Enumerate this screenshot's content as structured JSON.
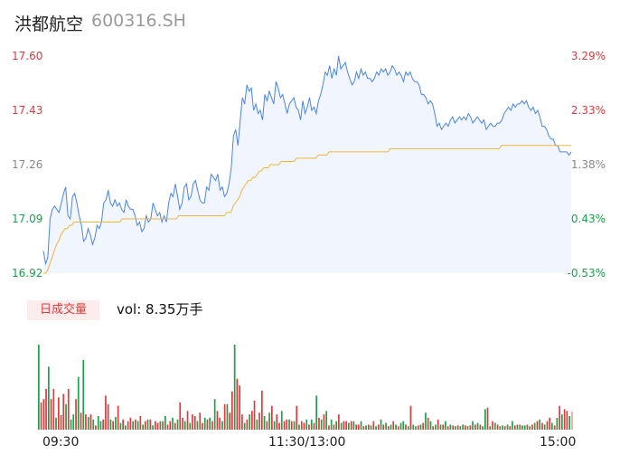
{
  "header": {
    "name": "洪都航空",
    "code": "600316.SH"
  },
  "colors": {
    "up": "#e4393c",
    "down": "#1aa34a",
    "neutral": "#888888",
    "price_line": "#4a84e8",
    "avg_line": "#f0b63c"
  },
  "volume": {
    "tab_label": "日成交量",
    "summary": "vol: 8.35万手"
  },
  "chart_data": [
    {
      "type": "line",
      "ylim": [
        16.92,
        17.6
      ],
      "y_ticks": [
        {
          "label": "17.60",
          "value": 17.6,
          "pct": "3.29%",
          "tone": "up"
        },
        {
          "label": "17.43",
          "value": 17.43,
          "pct": "2.33%",
          "tone": "up"
        },
        {
          "label": "17.26",
          "value": 17.26,
          "pct": "1.38%",
          "tone": "neutral"
        },
        {
          "label": "17.09",
          "value": 17.09,
          "pct": "0.43%",
          "tone": "down"
        },
        {
          "label": "16.92",
          "value": 16.92,
          "pct": "-0.53%",
          "tone": "down"
        }
      ],
      "x_ticks": [
        "09:30",
        "11:30/13:00",
        "15:00"
      ],
      "series": [
        {
          "role": "price",
          "values": [
            16.99,
            16.95,
            16.97,
            17.09,
            17.12,
            17.13,
            17.12,
            17.11,
            17.14,
            17.17,
            17.19,
            17.1,
            17.09,
            17.16,
            17.17,
            17.14,
            17.1,
            17.07,
            17.02,
            17.03,
            17.06,
            17.04,
            17.01,
            17.03,
            17.07,
            17.06,
            17.08,
            17.14,
            17.15,
            17.18,
            17.14,
            17.13,
            17.15,
            17.13,
            17.14,
            17.12,
            17.11,
            17.15,
            17.13,
            17.12,
            17.12,
            17.1,
            17.07,
            17.08,
            17.05,
            17.06,
            17.1,
            17.08,
            17.09,
            17.14,
            17.12,
            17.1,
            17.11,
            17.08,
            17.1,
            17.08,
            17.14,
            17.17,
            17.16,
            17.2,
            17.16,
            17.12,
            17.14,
            17.19,
            17.2,
            17.15,
            17.16,
            17.2,
            17.21,
            17.18,
            17.15,
            17.14,
            17.14,
            17.19,
            17.18,
            17.23,
            17.22,
            17.21,
            17.23,
            17.18,
            17.19,
            17.16,
            17.17,
            17.2,
            17.25,
            17.35,
            17.37,
            17.32,
            17.4,
            17.47,
            17.45,
            17.51,
            17.49,
            17.5,
            17.43,
            17.45,
            17.42,
            17.43,
            17.4,
            17.48,
            17.46,
            17.49,
            17.47,
            17.45,
            17.52,
            17.5,
            17.47,
            17.48,
            17.45,
            17.42,
            17.45,
            17.46,
            17.47,
            17.44,
            17.43,
            17.4,
            17.46,
            17.42,
            17.44,
            17.47,
            17.43,
            17.44,
            17.42,
            17.46,
            17.48,
            17.51,
            17.55,
            17.54,
            17.57,
            17.53,
            17.56,
            17.54,
            17.6,
            17.56,
            17.57,
            17.58,
            17.55,
            17.53,
            17.51,
            17.52,
            17.55,
            17.53,
            17.56,
            17.54,
            17.55,
            17.53,
            17.53,
            17.52,
            17.53,
            17.55,
            17.54,
            17.56,
            17.55,
            17.56,
            17.54,
            17.55,
            17.57,
            17.56,
            17.54,
            17.55,
            17.54,
            17.52,
            17.55,
            17.54,
            17.55,
            17.53,
            17.52,
            17.52,
            17.51,
            17.48,
            17.48,
            17.47,
            17.45,
            17.46,
            17.45,
            17.42,
            17.38,
            17.39,
            17.37,
            17.38,
            17.39,
            17.38,
            17.4,
            17.41,
            17.39,
            17.4,
            17.41,
            17.4,
            17.41,
            17.4,
            17.42,
            17.41,
            17.39,
            17.4,
            17.41,
            17.4,
            17.39,
            17.4,
            17.37,
            17.38,
            17.39,
            17.38,
            17.38,
            17.39,
            17.39,
            17.4,
            17.42,
            17.43,
            17.44,
            17.43,
            17.45,
            17.44,
            17.45,
            17.45,
            17.46,
            17.45,
            17.46,
            17.44,
            17.43,
            17.44,
            17.42,
            17.43,
            17.41,
            17.38,
            17.38,
            17.37,
            17.35,
            17.34,
            17.34,
            17.32,
            17.32,
            17.3,
            17.3,
            17.3,
            17.3,
            17.29,
            17.3
          ]
        },
        {
          "role": "average",
          "values": [
            16.92,
            16.92,
            16.93,
            16.95,
            16.97,
            16.99,
            17.01,
            17.02,
            17.04,
            17.05,
            17.06,
            17.06,
            17.07,
            17.07,
            17.08,
            17.08,
            17.08,
            17.08,
            17.08,
            17.08,
            17.08,
            17.08,
            17.08,
            17.08,
            17.08,
            17.08,
            17.08,
            17.08,
            17.08,
            17.08,
            17.08,
            17.08,
            17.08,
            17.08,
            17.08,
            17.08,
            17.09,
            17.09,
            17.09,
            17.09,
            17.09,
            17.09,
            17.09,
            17.09,
            17.09,
            17.09,
            17.09,
            17.09,
            17.09,
            17.09,
            17.09,
            17.09,
            17.09,
            17.09,
            17.09,
            17.09,
            17.09,
            17.09,
            17.09,
            17.09,
            17.09,
            17.09,
            17.1,
            17.1,
            17.1,
            17.1,
            17.1,
            17.1,
            17.1,
            17.1,
            17.1,
            17.1,
            17.1,
            17.1,
            17.1,
            17.1,
            17.1,
            17.1,
            17.1,
            17.1,
            17.1,
            17.1,
            17.1,
            17.1,
            17.11,
            17.11,
            17.11,
            17.13,
            17.14,
            17.15,
            17.16,
            17.18,
            17.19,
            17.2,
            17.21,
            17.21,
            17.22,
            17.22,
            17.23,
            17.24,
            17.24,
            17.25,
            17.25,
            17.25,
            17.26,
            17.26,
            17.26,
            17.26,
            17.26,
            17.27,
            17.27,
            17.27,
            17.27,
            17.27,
            17.27,
            17.27,
            17.28,
            17.28,
            17.28,
            17.28,
            17.28,
            17.28,
            17.28,
            17.28,
            17.28,
            17.28,
            17.29,
            17.29,
            17.29,
            17.29,
            17.29,
            17.3,
            17.3,
            17.3,
            17.3,
            17.3,
            17.3,
            17.3,
            17.3,
            17.3,
            17.3,
            17.3,
            17.3,
            17.3,
            17.3,
            17.3,
            17.3,
            17.3,
            17.3,
            17.3,
            17.3,
            17.3,
            17.3,
            17.3,
            17.3,
            17.3,
            17.3,
            17.3,
            17.3,
            17.31,
            17.31,
            17.31,
            17.31,
            17.31,
            17.31,
            17.31,
            17.31,
            17.31,
            17.31,
            17.31,
            17.31,
            17.31,
            17.31,
            17.31,
            17.31,
            17.31,
            17.31,
            17.31,
            17.31,
            17.31,
            17.31,
            17.31,
            17.31,
            17.31,
            17.31,
            17.31,
            17.31,
            17.31,
            17.31,
            17.31,
            17.31,
            17.31,
            17.31,
            17.31,
            17.31,
            17.31,
            17.31,
            17.31,
            17.31,
            17.31,
            17.31,
            17.31,
            17.31,
            17.31,
            17.31,
            17.31,
            17.31,
            17.31,
            17.31,
            17.31,
            17.32,
            17.32,
            17.32,
            17.32,
            17.32,
            17.32,
            17.32,
            17.32,
            17.32,
            17.32,
            17.32,
            17.32,
            17.32,
            17.32,
            17.32,
            17.32,
            17.32,
            17.32,
            17.32,
            17.32,
            17.32,
            17.32,
            17.32,
            17.32,
            17.32,
            17.32,
            17.32,
            17.32,
            17.32,
            17.32,
            17.32,
            17.32,
            17.32
          ]
        }
      ]
    },
    {
      "type": "bar",
      "x_ticks": [
        "09:30",
        "11:30/13:00",
        "15:00"
      ],
      "values": [
        100,
        32,
        36,
        48,
        74,
        36,
        48,
        14,
        38,
        17,
        42,
        30,
        48,
        12,
        18,
        36,
        62,
        20,
        82,
        18,
        15,
        18,
        12,
        5,
        16,
        10,
        12,
        40,
        30,
        12,
        10,
        15,
        28,
        8,
        12,
        5,
        10,
        14,
        10,
        12,
        10,
        16,
        6,
        10,
        12,
        12,
        5,
        10,
        8,
        10,
        10,
        16,
        6,
        10,
        14,
        8,
        12,
        32,
        14,
        10,
        22,
        8,
        18,
        16,
        10,
        20,
        8,
        14,
        12,
        14,
        10,
        36,
        22,
        14,
        10,
        30,
        30,
        20,
        45,
        100,
        60,
        52,
        18,
        8,
        12,
        18,
        22,
        34,
        12,
        20,
        46,
        16,
        10,
        20,
        28,
        10,
        18,
        8,
        22,
        10,
        12,
        12,
        10,
        10,
        28,
        6,
        10,
        8,
        12,
        6,
        12,
        8,
        40,
        14,
        12,
        18,
        22,
        5,
        12,
        6,
        10,
        18,
        8,
        10,
        10,
        8,
        10,
        10,
        6,
        6,
        10,
        4,
        5,
        6,
        5,
        10,
        4,
        6,
        12,
        6,
        8,
        4,
        6,
        10,
        6,
        4,
        8,
        10,
        6,
        4,
        28,
        6,
        4,
        5,
        6,
        8,
        20,
        14,
        10,
        4,
        6,
        12,
        6,
        6,
        10,
        4,
        6,
        5,
        4,
        5,
        4,
        6,
        5,
        4,
        5,
        10,
        6,
        8,
        6,
        4,
        24,
        26,
        4,
        10,
        8,
        6,
        4,
        5,
        4,
        6,
        4,
        10,
        5,
        6,
        6,
        5,
        5,
        6,
        4,
        6,
        8,
        10,
        12,
        8,
        6,
        10,
        14,
        8,
        5,
        14,
        28,
        18,
        24,
        22,
        16
      ],
      "colors": [
        "down",
        "up",
        "up",
        "up",
        "down",
        "up",
        "up",
        "down",
        "up",
        "up",
        "up",
        "down",
        "up",
        "down",
        "down",
        "up",
        "down",
        "up",
        "down",
        "up",
        "down",
        "up",
        "down",
        "up",
        "down",
        "down",
        "up",
        "up",
        "up",
        "down",
        "up",
        "down",
        "up",
        "down",
        "up",
        "down",
        "up",
        "up",
        "down",
        "up",
        "down",
        "up",
        "down",
        "up",
        "down",
        "up",
        "down",
        "up",
        "up",
        "down",
        "up",
        "down",
        "up",
        "up",
        "down",
        "up",
        "down",
        "up",
        "up",
        "down",
        "up",
        "down",
        "up",
        "up",
        "down",
        "up",
        "up",
        "down",
        "up",
        "down",
        "up",
        "down",
        "up",
        "up",
        "down",
        "up",
        "down",
        "up",
        "up",
        "down",
        "up",
        "up",
        "up",
        "down",
        "up",
        "down",
        "up",
        "up",
        "down",
        "up",
        "up",
        "down",
        "up",
        "down",
        "up",
        "down",
        "up",
        "up",
        "down",
        "up",
        "up",
        "down",
        "up",
        "down",
        "up",
        "down",
        "up",
        "up",
        "down",
        "up",
        "down",
        "up",
        "down",
        "up",
        "down",
        "up",
        "down",
        "up",
        "down",
        "up",
        "down",
        "up",
        "down",
        "up",
        "up",
        "down",
        "up",
        "down",
        "up",
        "up",
        "down",
        "up",
        "down",
        "up",
        "down",
        "up",
        "down",
        "up",
        "down",
        "up",
        "down",
        "up",
        "down",
        "up",
        "down",
        "up",
        "down",
        "down",
        "up",
        "down",
        "up",
        "down",
        "down",
        "up",
        "down",
        "up",
        "down",
        "up",
        "down",
        "up",
        "down",
        "up",
        "down",
        "up",
        "down",
        "up",
        "down",
        "up",
        "down",
        "up",
        "down",
        "down",
        "up",
        "down",
        "up",
        "down",
        "up",
        "down",
        "up",
        "down",
        "down",
        "up",
        "down",
        "up",
        "down",
        "up",
        "down",
        "down",
        "up",
        "down",
        "up",
        "down",
        "up",
        "down",
        "up",
        "down",
        "down",
        "up",
        "down",
        "up",
        "down",
        "up",
        "down",
        "up",
        "down",
        "up",
        "up",
        "down",
        "up",
        "down",
        "up",
        "down",
        "up",
        "up",
        "down",
        "up",
        "up"
      ]
    }
  ]
}
